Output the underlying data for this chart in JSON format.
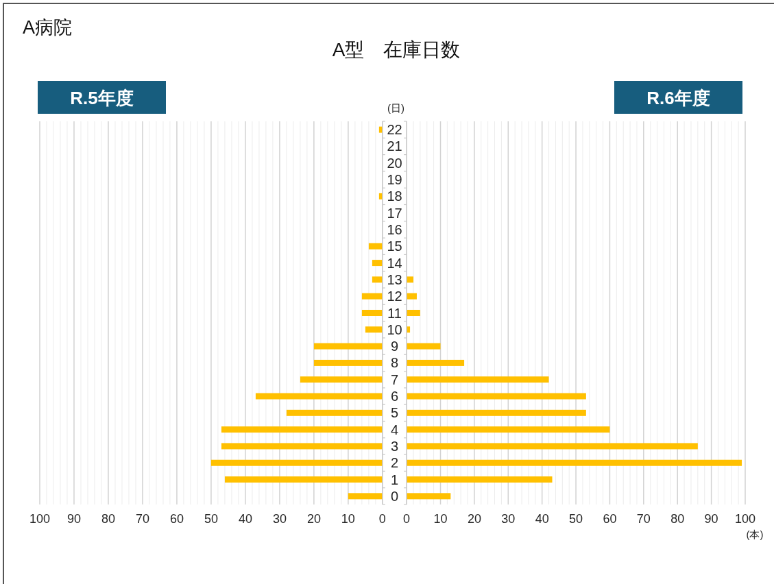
{
  "chart_data": [
    {
      "type": "other",
      "title": "A型　在庫日数",
      "annotations": [
        "A病院"
      ]
    },
    {
      "type": "bar",
      "orientation": "horizontal",
      "title": "R.5年度",
      "ylabel": "(日)",
      "categories": [
        "22",
        "21",
        "20",
        "19",
        "18",
        "17",
        "16",
        "15",
        "14",
        "13",
        "12",
        "11",
        "10",
        "9",
        "8",
        "7",
        "6",
        "5",
        "4",
        "3",
        "2",
        "1",
        "0"
      ],
      "values": [
        1,
        0,
        0,
        0,
        1,
        0,
        0,
        4,
        3,
        3,
        6,
        6,
        5,
        20,
        20,
        24,
        37,
        28,
        47,
        47,
        50,
        46,
        10
      ],
      "color": "#ffc000",
      "xlim": [
        100,
        0
      ],
      "xticks": [
        0,
        {
          "value": 2,
          "label": null
        },
        {
          "value": 4,
          "label": null
        },
        {
          "value": 6,
          "label": null
        },
        {
          "value": 8,
          "label": null
        },
        10,
        {
          "value": 12,
          "label": null
        },
        {
          "value": 14,
          "label": null
        },
        {
          "value": 16,
          "label": null
        },
        {
          "value": 18,
          "label": null
        },
        20,
        {
          "value": 22,
          "label": null
        },
        {
          "value": 24,
          "label": null
        },
        {
          "value": 26,
          "label": null
        },
        {
          "value": 28,
          "label": null
        },
        30,
        {
          "value": 32,
          "label": null
        },
        {
          "value": 34,
          "label": null
        },
        {
          "value": 36,
          "label": null
        },
        {
          "value": 38,
          "label": null
        },
        40,
        {
          "value": 42,
          "label": null
        },
        {
          "value": 44,
          "label": null
        },
        {
          "value": 46,
          "label": null
        },
        {
          "value": 48,
          "label": null
        },
        50,
        {
          "value": 52,
          "label": null
        },
        {
          "value": 54,
          "label": null
        },
        {
          "value": 56,
          "label": null
        },
        {
          "value": 58,
          "label": null
        },
        60,
        {
          "value": 62,
          "label": null
        },
        {
          "value": 64,
          "label": null
        },
        {
          "value": 66,
          "label": null
        },
        {
          "value": 68,
          "label": null
        },
        70,
        {
          "value": 72,
          "label": null
        },
        {
          "value": 74,
          "label": null
        },
        {
          "value": 76,
          "label": null
        },
        {
          "value": 78,
          "label": null
        },
        80,
        {
          "value": 82,
          "label": null
        },
        {
          "value": 84,
          "label": null
        },
        {
          "value": 86,
          "label": null
        },
        {
          "value": 88,
          "label": null
        },
        90,
        {
          "value": 92,
          "label": null
        },
        {
          "value": 94,
          "label": null
        },
        {
          "value": 96,
          "label": null
        },
        {
          "value": 98,
          "label": null
        },
        100
      ],
      "grid": "x"
    },
    {
      "type": "bar",
      "orientation": "horizontal",
      "title": "R.6年度",
      "xlabel": "(本)",
      "categories": [
        "22",
        "21",
        "20",
        "19",
        "18",
        "17",
        "16",
        "15",
        "14",
        "13",
        "12",
        "11",
        "10",
        "9",
        "8",
        "7",
        "6",
        "5",
        "4",
        "3",
        "2",
        "1",
        "0"
      ],
      "values": [
        0,
        0,
        0,
        0,
        0,
        0,
        0,
        0,
        0,
        2,
        3,
        4,
        1,
        10,
        17,
        42,
        53,
        53,
        60,
        86,
        99,
        43,
        13
      ],
      "color": "#ffc000",
      "xlim": [
        0,
        100
      ],
      "xticks": [
        0,
        {
          "value": 2,
          "label": null
        },
        {
          "value": 4,
          "label": null
        },
        {
          "value": 6,
          "label": null
        },
        {
          "value": 8,
          "label": null
        },
        10,
        {
          "value": 12,
          "label": null
        },
        {
          "value": 14,
          "label": null
        },
        {
          "value": 16,
          "label": null
        },
        {
          "value": 18,
          "label": null
        },
        20,
        {
          "value": 22,
          "label": null
        },
        {
          "value": 24,
          "label": null
        },
        {
          "value": 26,
          "label": null
        },
        {
          "value": 28,
          "label": null
        },
        30,
        {
          "value": 32,
          "label": null
        },
        {
          "value": 34,
          "label": null
        },
        {
          "value": 36,
          "label": null
        },
        {
          "value": 38,
          "label": null
        },
        40,
        {
          "value": 42,
          "label": null
        },
        {
          "value": 44,
          "label": null
        },
        {
          "value": 46,
          "label": null
        },
        {
          "value": 48,
          "label": null
        },
        50,
        {
          "value": 52,
          "label": null
        },
        {
          "value": 54,
          "label": null
        },
        {
          "value": 56,
          "label": null
        },
        {
          "value": 58,
          "label": null
        },
        60,
        {
          "value": 62,
          "label": null
        },
        {
          "value": 64,
          "label": null
        },
        {
          "value": 66,
          "label": null
        },
        {
          "value": 68,
          "label": null
        },
        70,
        {
          "value": 72,
          "label": null
        },
        {
          "value": 74,
          "label": null
        },
        {
          "value": 76,
          "label": null
        },
        {
          "value": 78,
          "label": null
        },
        80,
        {
          "value": 82,
          "label": null
        },
        {
          "value": 84,
          "label": null
        },
        {
          "value": 86,
          "label": null
        },
        {
          "value": 88,
          "label": null
        },
        90,
        {
          "value": 92,
          "label": null
        },
        {
          "value": 94,
          "label": null
        },
        {
          "value": 96,
          "label": null
        },
        {
          "value": 98,
          "label": null
        },
        100
      ],
      "grid": "x",
      "tick_labels": "x"
    }
  ]
}
